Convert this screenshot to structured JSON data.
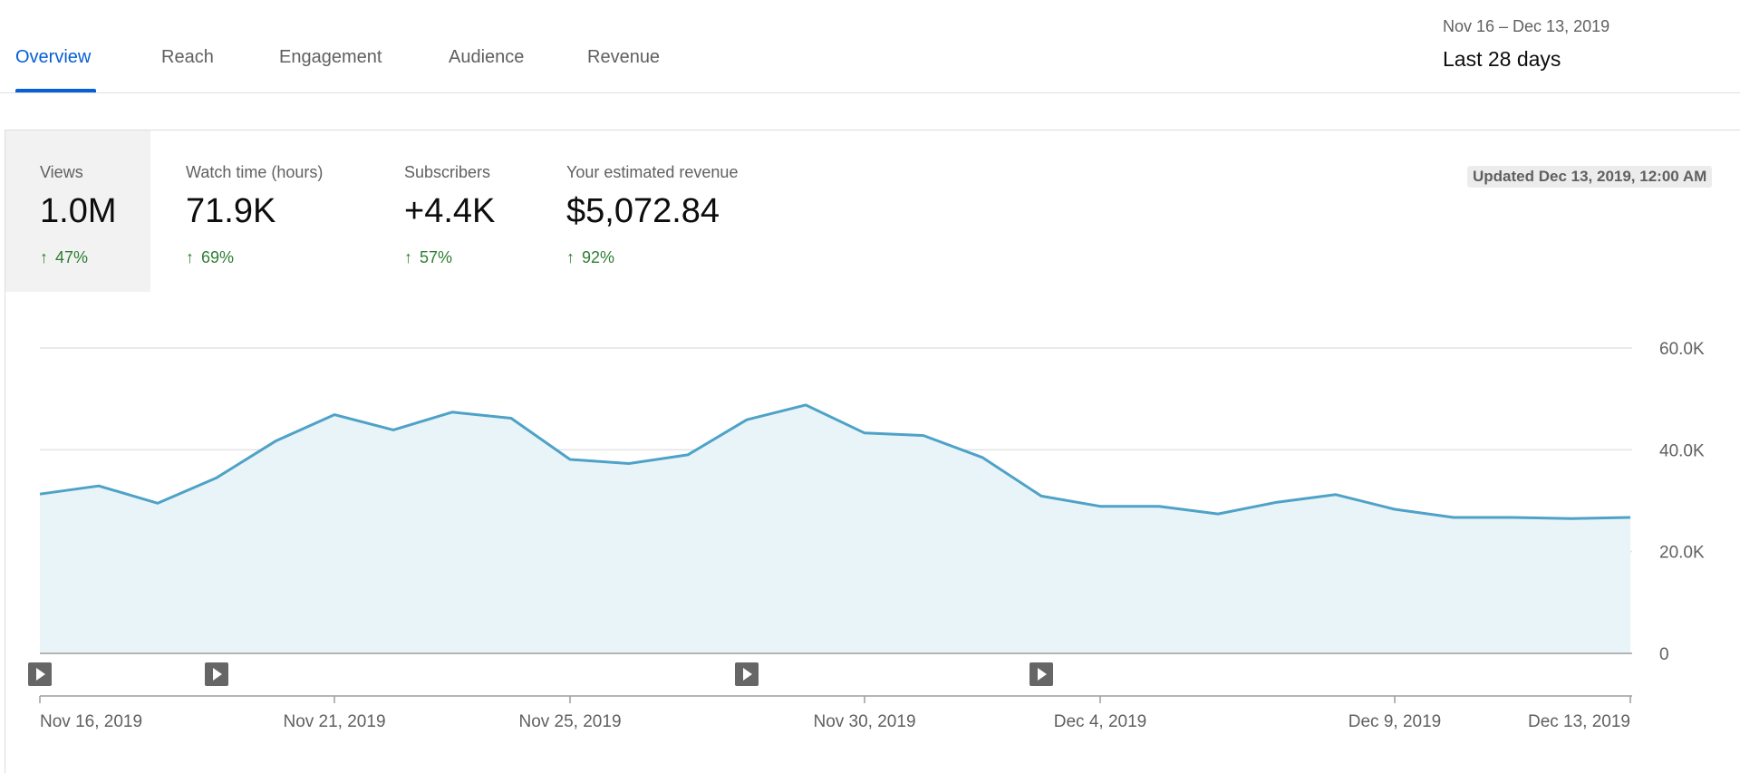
{
  "tabs": [
    {
      "label": "Overview",
      "active": true
    },
    {
      "label": "Reach",
      "active": false
    },
    {
      "label": "Engagement",
      "active": false
    },
    {
      "label": "Audience",
      "active": false
    },
    {
      "label": "Revenue",
      "active": false
    }
  ],
  "date_range": {
    "dates": "Nov 16 – Dec 13, 2019",
    "label": "Last 28 days"
  },
  "metrics": [
    {
      "label": "Views",
      "value": "1.0M",
      "delta": "47%",
      "selected": true
    },
    {
      "label": "Watch time (hours)",
      "value": "71.9K",
      "delta": "69%",
      "selected": false
    },
    {
      "label": "Subscribers",
      "value": "+4.4K",
      "delta": "57%",
      "selected": false
    },
    {
      "label": "Your estimated revenue",
      "value": "$5,072.84",
      "delta": "92%",
      "selected": false
    }
  ],
  "updated_text": "Updated Dec 13, 2019, 12:00 AM",
  "colors": {
    "accent": "#065fd4",
    "positive": "#2e7d32",
    "line": "#4ea2c8",
    "area": "#e9f4f8"
  },
  "chart_data": {
    "type": "area",
    "x": [
      "Nov 16, 2019",
      "Nov 17, 2019",
      "Nov 18, 2019",
      "Nov 19, 2019",
      "Nov 20, 2019",
      "Nov 21, 2019",
      "Nov 22, 2019",
      "Nov 23, 2019",
      "Nov 24, 2019",
      "Nov 25, 2019",
      "Nov 26, 2019",
      "Nov 27, 2019",
      "Nov 28, 2019",
      "Nov 29, 2019",
      "Nov 30, 2019",
      "Dec 1, 2019",
      "Dec 2, 2019",
      "Dec 3, 2019",
      "Dec 4, 2019",
      "Dec 5, 2019",
      "Dec 6, 2019",
      "Dec 7, 2019",
      "Dec 8, 2019",
      "Dec 9, 2019",
      "Dec 10, 2019",
      "Dec 11, 2019",
      "Dec 12, 2019",
      "Dec 13, 2019"
    ],
    "series": [
      {
        "values": [
          31300,
          32900,
          29500,
          34500,
          41700,
          46900,
          43900,
          47400,
          46200,
          38100,
          37300,
          39000,
          45900,
          48800,
          43300,
          42800,
          38500,
          30900,
          28900,
          28900,
          27400,
          29700,
          31200,
          28300,
          26700,
          26700,
          26500,
          26700
        ]
      }
    ],
    "y_ticks": [
      "0",
      "20.0K",
      "40.0K",
      "60.0K"
    ],
    "ylim": [
      0,
      60000
    ],
    "x_tick_labels": [
      "Nov 16, 2019",
      "Nov 21, 2019",
      "Nov 25, 2019",
      "Nov 30, 2019",
      "Dec 4, 2019",
      "Dec 9, 2019",
      "Dec 13, 2019"
    ],
    "video_markers": [
      "Nov 16, 2019",
      "Nov 19, 2019",
      "Nov 28, 2019",
      "Dec 3, 2019"
    ],
    "grid": true
  }
}
